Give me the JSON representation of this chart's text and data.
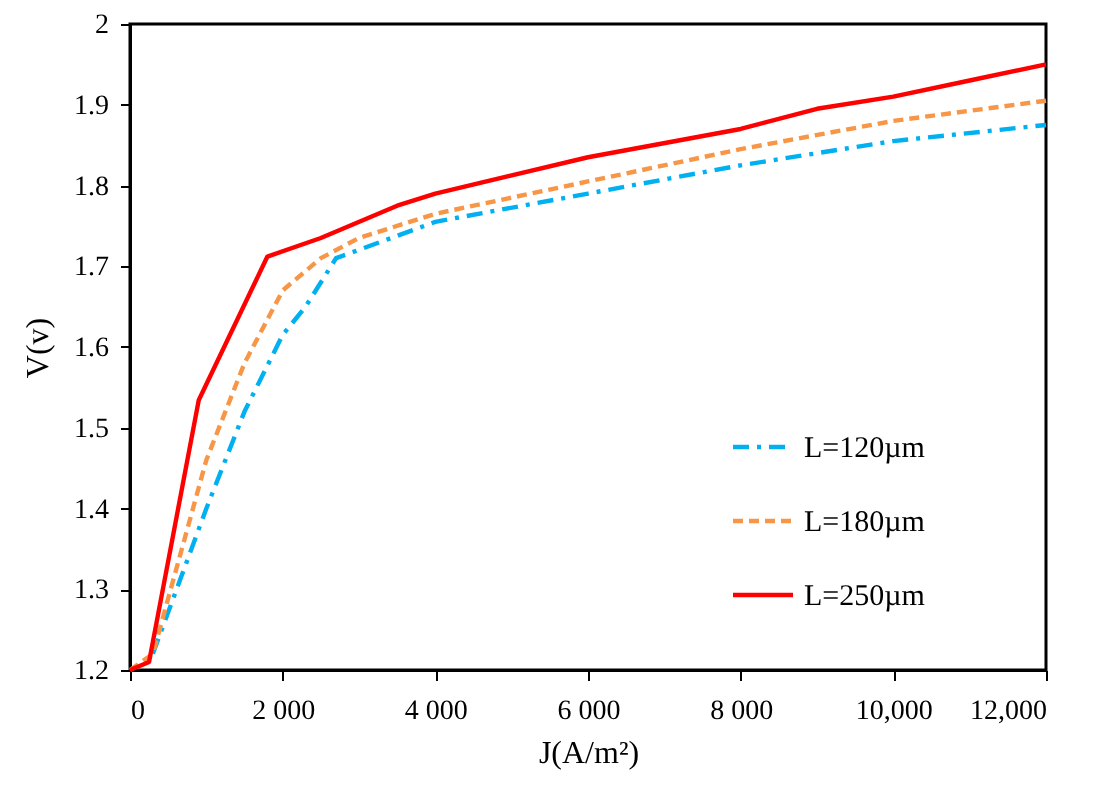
{
  "chart_data": {
    "type": "line",
    "xlabel": "J(A/m²)",
    "ylabel": "V(v)",
    "xlim": [
      0,
      12000
    ],
    "ylim": [
      1.2,
      2
    ],
    "xticks": [
      0,
      {
        "value": 2000,
        "label": "2 000"
      },
      {
        "value": 4000,
        "label": "4 000"
      },
      {
        "value": 6000,
        "label": "6 000"
      },
      {
        "value": 8000,
        "label": "8 000"
      },
      {
        "value": 10000,
        "label": "10,000"
      },
      {
        "value": 12000,
        "label": "12,000"
      }
    ],
    "yticks": [
      1.2,
      1.3,
      1.4,
      1.5,
      1.6,
      1.7,
      1.8,
      1.9,
      2
    ],
    "grid": false,
    "legend": "right",
    "marker": "none",
    "series": [
      {
        "name": "L=120µm",
        "color": "#00b0f0",
        "line_style": "dashdot",
        "x": [
          300,
          1000,
          1500,
          2000,
          2300,
          2700,
          4000,
          6000,
          8000,
          10000,
          12000
        ],
        "values": [
          1.22,
          1.4,
          1.52,
          1.615,
          1.65,
          1.71,
          1.755,
          1.79,
          1.825,
          1.855,
          1.875
        ]
      },
      {
        "name": "L=180µm",
        "color": "#f79646",
        "line_style": "dashed",
        "x": [
          0,
          300,
          1000,
          1500,
          2000,
          2500,
          3000,
          4000,
          6000,
          8000,
          10000,
          12000
        ],
        "values": [
          1.2,
          1.22,
          1.46,
          1.58,
          1.67,
          1.71,
          1.735,
          1.765,
          1.805,
          1.845,
          1.88,
          1.905
        ]
      },
      {
        "name": "L=250µm",
        "color": "#ff0000",
        "line_style": "solid",
        "x": [
          0,
          250,
          900,
          1800,
          2500,
          3500,
          4000,
          6000,
          8000,
          9000,
          10000,
          11000,
          12000
        ],
        "values": [
          1.2,
          1.21,
          1.534,
          1.712,
          1.735,
          1.775,
          1.79,
          1.835,
          1.87,
          1.895,
          1.91,
          1.93,
          1.95
        ]
      }
    ]
  }
}
